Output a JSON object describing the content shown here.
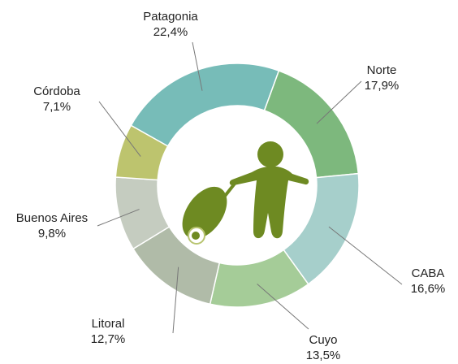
{
  "chart_data": {
    "type": "donut",
    "categories": [
      "Patagonia",
      "Norte",
      "CABA",
      "Cuyo",
      "Litoral",
      "Buenos Aires",
      "Córdoba"
    ],
    "values": [
      22.4,
      17.9,
      16.6,
      13.5,
      12.7,
      9.8,
      7.1
    ],
    "value_labels": [
      "22,4%",
      "17,9%",
      "16,6%",
      "13,5%",
      "12,7%",
      "9,8%",
      "7,1%"
    ],
    "colors": [
      "#77bcb8",
      "#7db87d",
      "#a6cfcb",
      "#a5cc98",
      "#b0bba8",
      "#c5ccc0",
      "#bdc46e"
    ]
  }
}
